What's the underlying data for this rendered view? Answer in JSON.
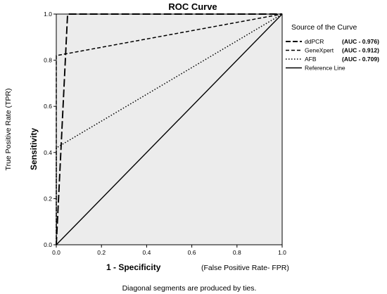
{
  "chart_data": {
    "type": "line",
    "title": "ROC Curve",
    "xlabel_main": "1 - Specificity",
    "xlabel_extra": "(False Positive Rate- FPR)",
    "ylabel_main": "Sensitivity",
    "ylabel_extra": "True Positive Rate (TPR)",
    "xlim": [
      0,
      1
    ],
    "ylim": [
      0,
      1
    ],
    "x_ticks": [
      "0.0",
      "0.2",
      "0.4",
      "0.6",
      "0.8",
      "1.0"
    ],
    "y_ticks": [
      "0.0",
      "0.2",
      "0.4",
      "0.6",
      "0.8",
      "1.0"
    ],
    "grid": false,
    "legend_title": "Source of the Curve",
    "legend_position": "right",
    "series": [
      {
        "name": "ddPCR",
        "auc_label": "(AUC - 0.976)",
        "style": "longdash",
        "x": [
          0,
          0.05,
          1.0
        ],
        "y": [
          0,
          1.0,
          1.0
        ]
      },
      {
        "name": "GeneXpert",
        "auc_label": "(AUC - 0.912)",
        "style": "dash",
        "x": [
          0,
          0,
          1.0
        ],
        "y": [
          0,
          0.82,
          1.0
        ]
      },
      {
        "name": "AFB",
        "auc_label": "(AUC - 0.709)",
        "style": "dot",
        "x": [
          0,
          0,
          1.0
        ],
        "y": [
          0,
          0.42,
          1.0
        ]
      },
      {
        "name": "Reference Line",
        "auc_label": "",
        "style": "solid",
        "x": [
          0,
          1.0
        ],
        "y": [
          0,
          1.0
        ]
      }
    ],
    "footnote": "Diagonal segments are produced by ties.",
    "plot_background": "#ececec",
    "line_color": "#000000"
  }
}
